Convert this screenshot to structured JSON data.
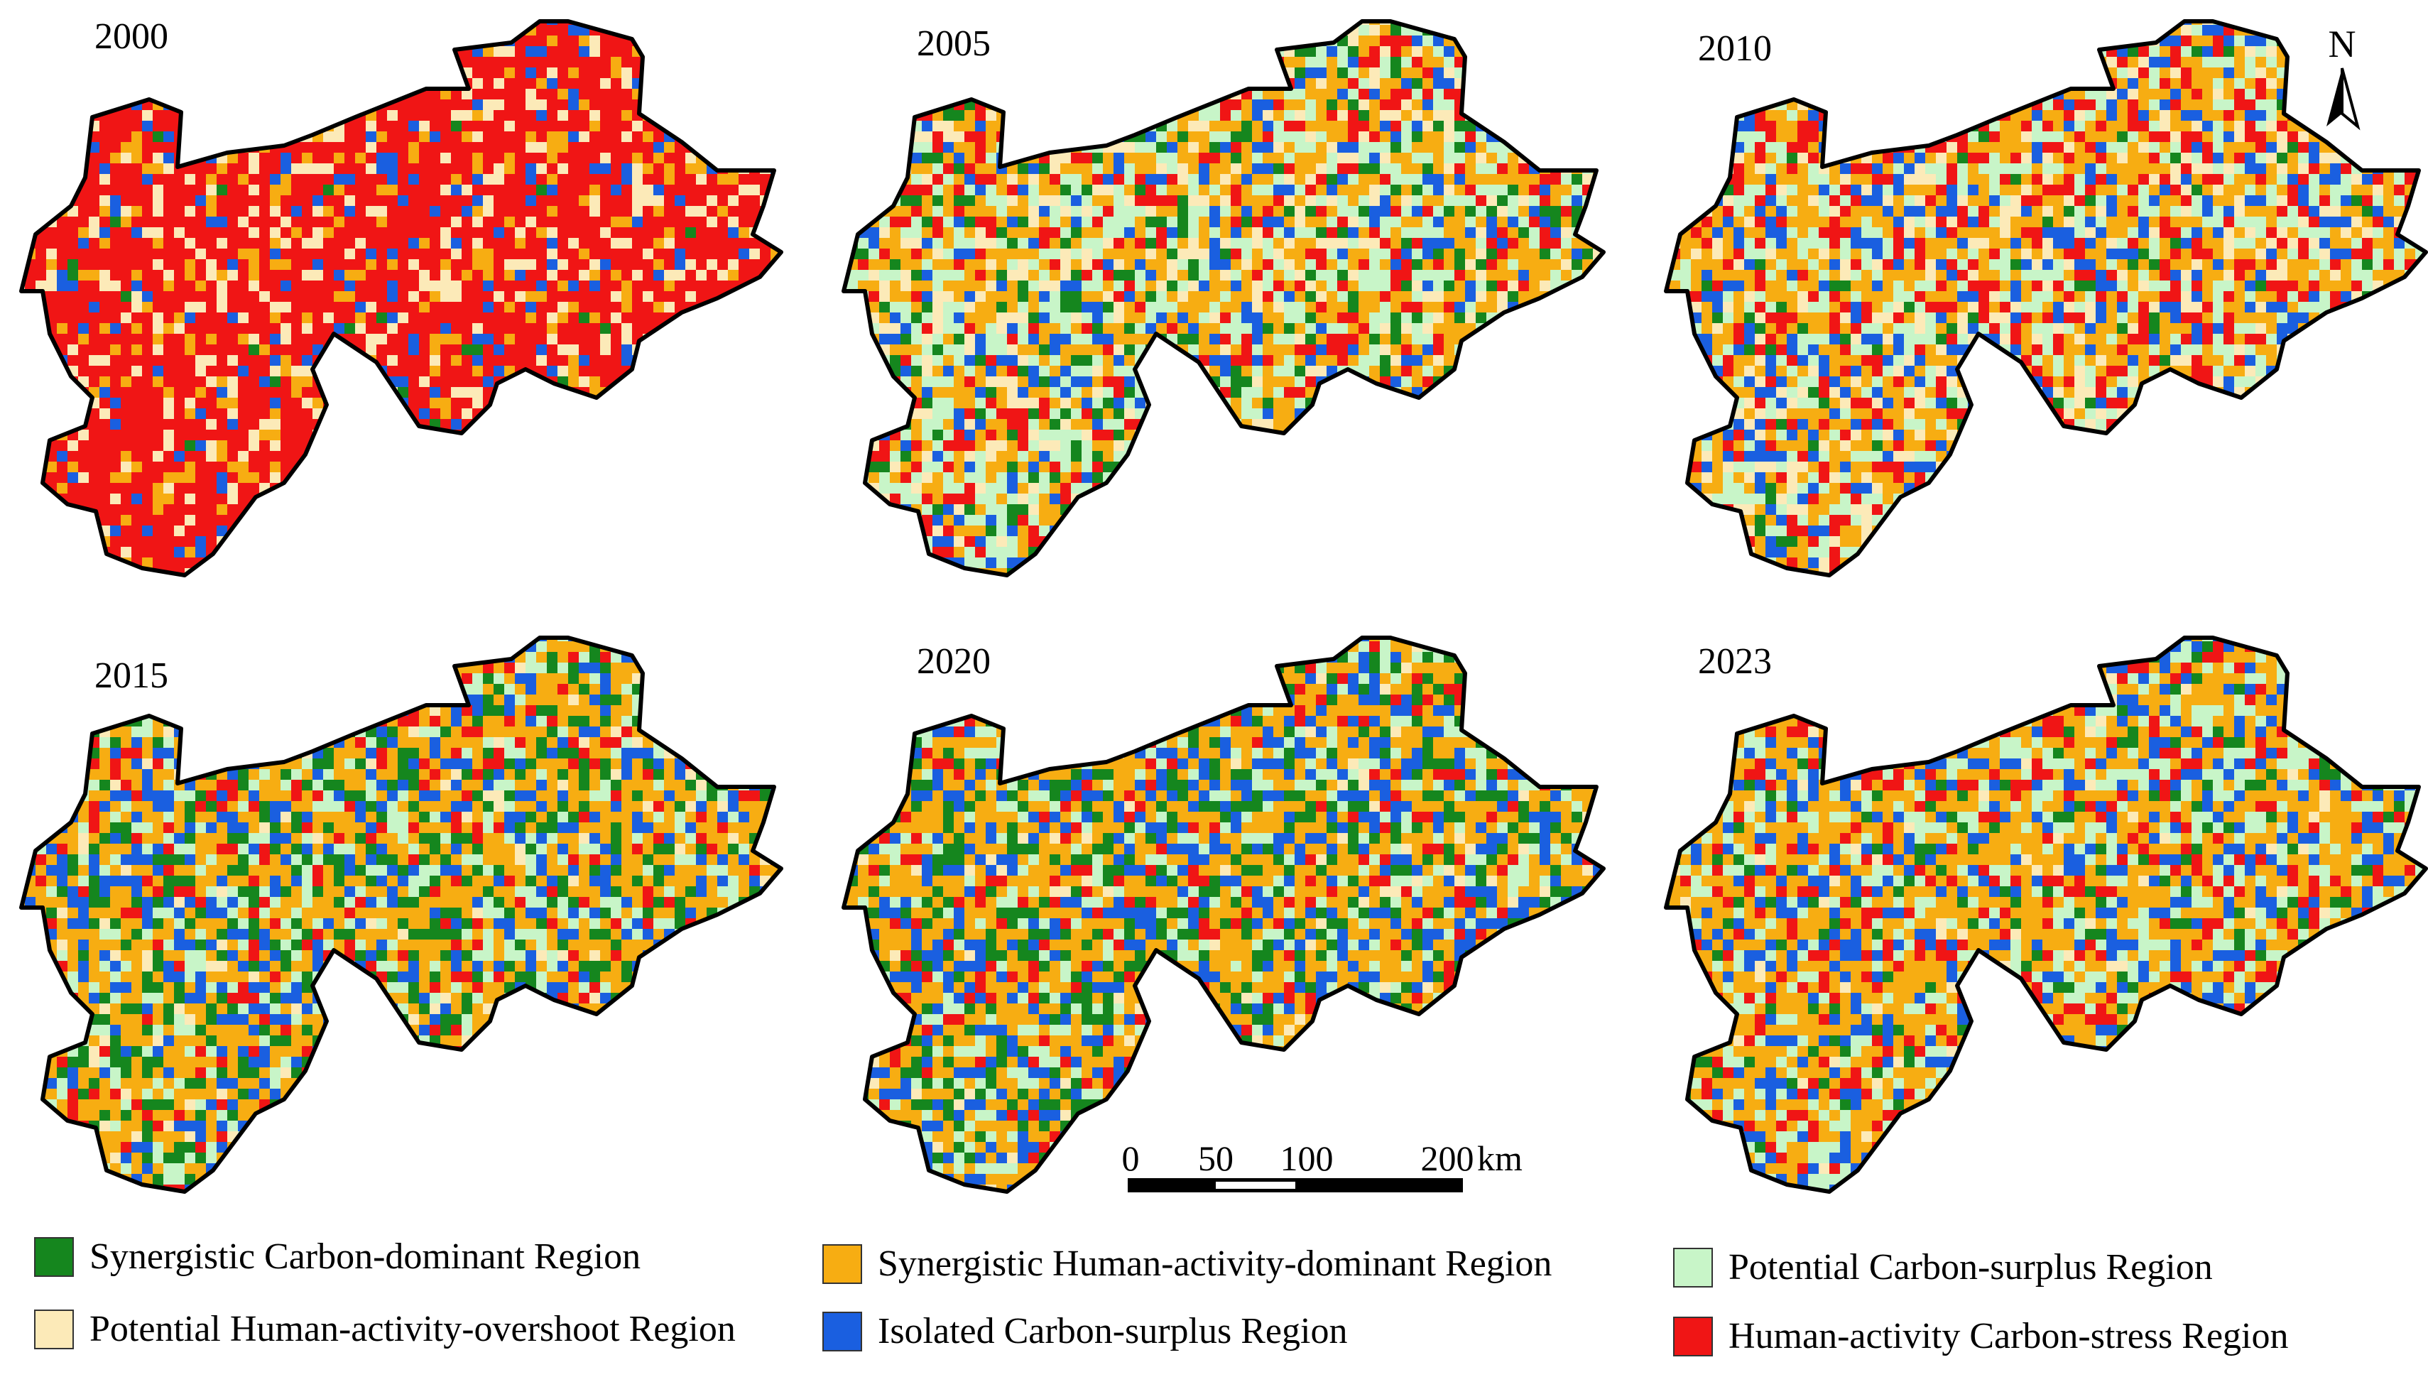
{
  "panels": [
    {
      "year": "2000",
      "mix": [
        0.01,
        0.12,
        0.0,
        0.14,
        0.08,
        0.65
      ]
    },
    {
      "year": "2005",
      "mix": [
        0.1,
        0.3,
        0.23,
        0.12,
        0.12,
        0.13
      ]
    },
    {
      "year": "2010",
      "mix": [
        0.04,
        0.3,
        0.2,
        0.14,
        0.14,
        0.18
      ]
    },
    {
      "year": "2015",
      "mix": [
        0.17,
        0.36,
        0.15,
        0.05,
        0.17,
        0.1
      ]
    },
    {
      "year": "2020",
      "mix": [
        0.19,
        0.36,
        0.15,
        0.03,
        0.19,
        0.08
      ]
    },
    {
      "year": "2023",
      "mix": [
        0.07,
        0.38,
        0.2,
        0.03,
        0.18,
        0.14
      ]
    }
  ],
  "north": "N",
  "scale_bar": {
    "ticks": [
      "0",
      "50",
      "100",
      "200"
    ],
    "unit": "km"
  },
  "legend": [
    {
      "label": "Synergistic Carbon-dominant Region",
      "color": "#15861e"
    },
    {
      "label": "Synergistic Human-activity-dominant Region",
      "color": "#f7ad12"
    },
    {
      "label": "Potential Carbon-surplus Region",
      "color": "#c8f5c8"
    },
    {
      "label": "Potential Human-activity-overshoot Region",
      "color": "#fceab8"
    },
    {
      "label": "Isolated Carbon-surplus Region",
      "color": "#1a5fe0"
    },
    {
      "label": "Human-activity Carbon-stress Region",
      "color": "#f01515"
    }
  ]
}
